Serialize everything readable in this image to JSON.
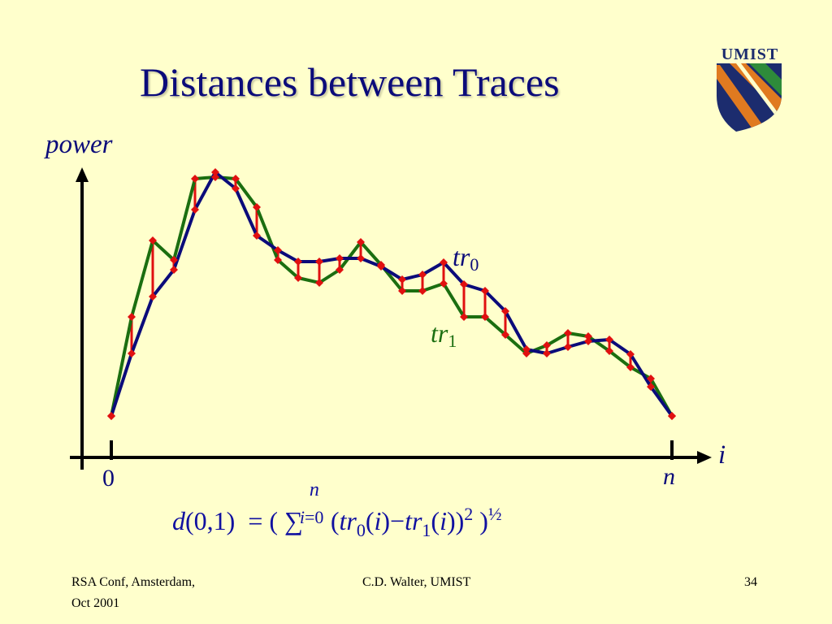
{
  "slide": {
    "title": "Distances between Traces",
    "logo_text": "UMIST",
    "page_number": "34"
  },
  "axes": {
    "y_label": "power",
    "x_label": "i",
    "x_start_label": "0",
    "x_end_label": "n"
  },
  "traces": {
    "tr0": {
      "name": "tr",
      "subscript": "0",
      "color": "#0B0B7A"
    },
    "tr1": {
      "name": "tr",
      "subscript": "1",
      "color": "#1B6E10"
    },
    "difference_color": "#E01010"
  },
  "formula": {
    "lhs_fn": "d",
    "lhs_args": "(0,1)",
    "equals": "=",
    "open_paren": "(",
    "sigma": "∑",
    "upper": "n",
    "lower": "i=0",
    "body_open": "(",
    "tr": "tr",
    "sub0": "0",
    "sub1": "1",
    "arg": "(i)",
    "minus": "−",
    "close": ")",
    "power": "2",
    "close_paren": ")",
    "half": "½"
  },
  "footer": {
    "left_line1": "RSA Conf, Amsterdam,",
    "left_line2": "Oct 2001",
    "center": "C.D. Walter, UMIST",
    "right": "34"
  }
}
